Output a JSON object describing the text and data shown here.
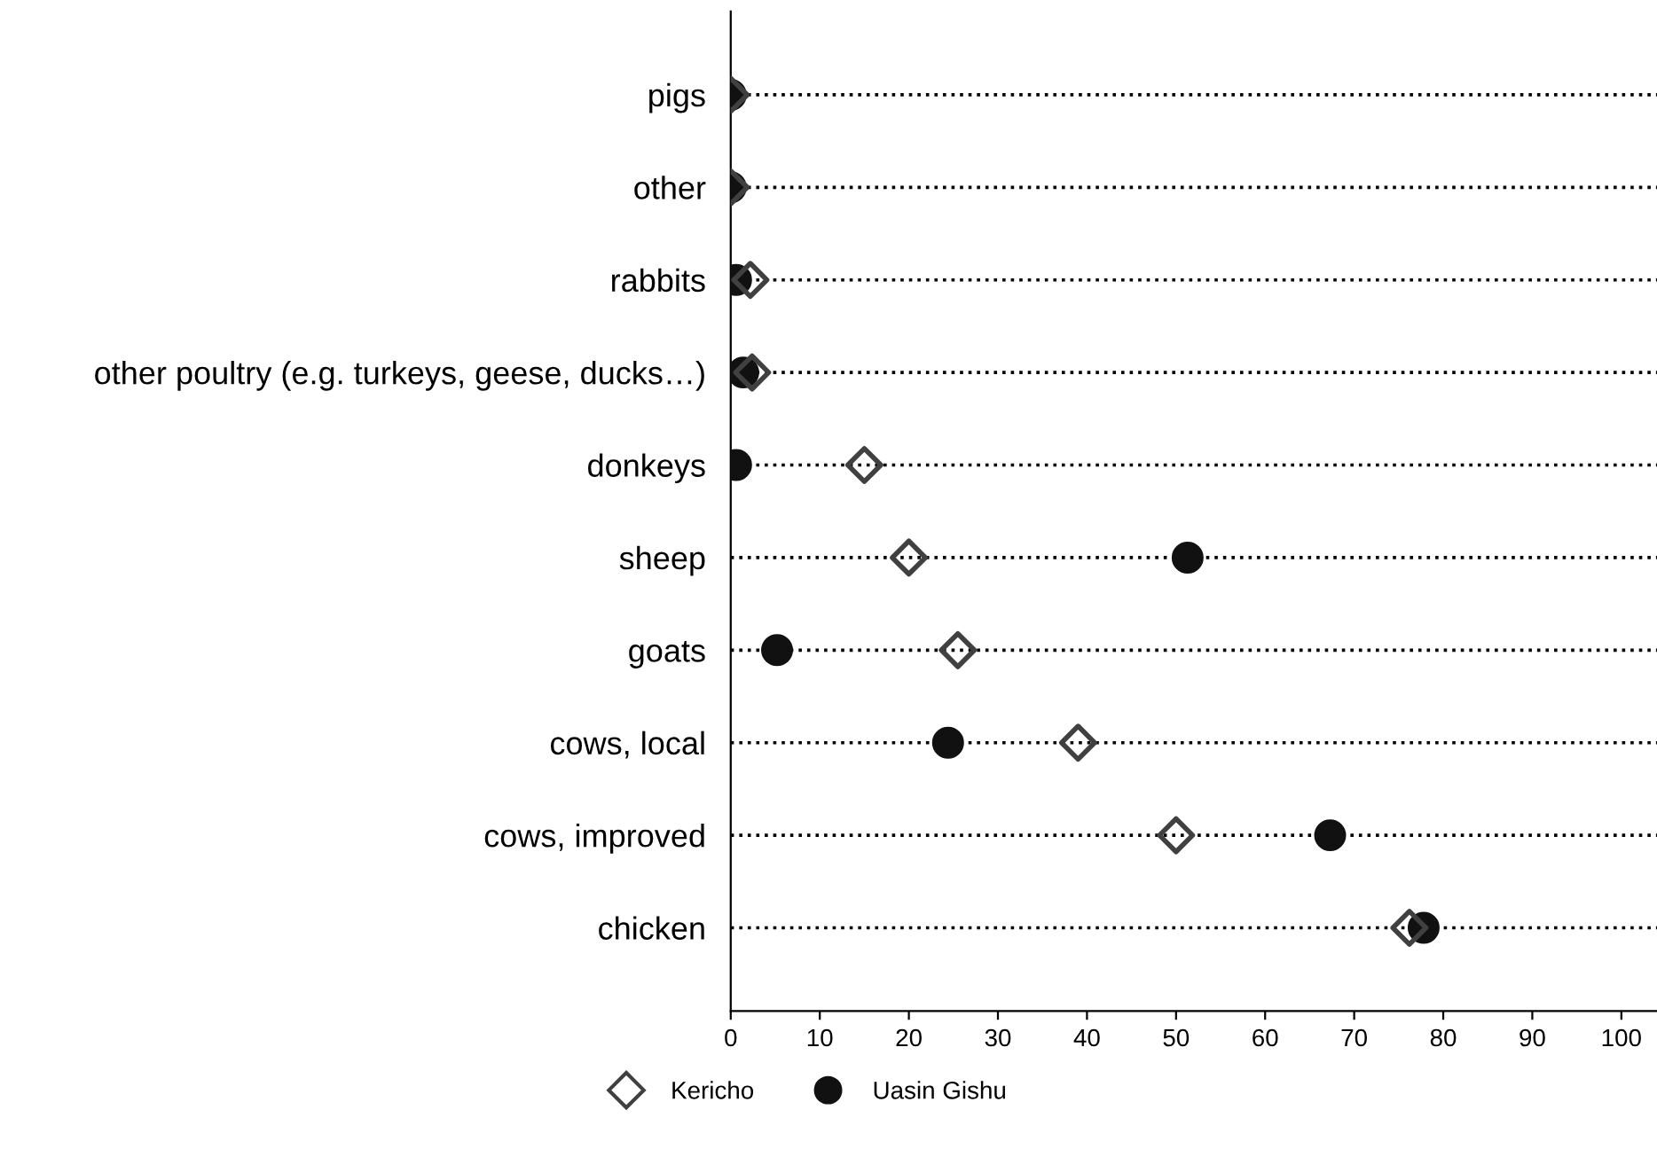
{
  "chart_data": {
    "type": "scatter",
    "orientation": "horizontal",
    "categories": [
      "pigs",
      "other",
      "rabbits",
      "other poultry (e.g. turkeys, geese, ducks…)",
      "donkeys",
      "sheep",
      "goats",
      "cows, local",
      "cows, improved",
      "chicken"
    ],
    "series": [
      {
        "name": "Kericho",
        "color": "#404040",
        "marker": "diamond",
        "values": [
          0,
          0,
          2.2,
          2.4,
          15,
          20,
          25.5,
          39,
          50,
          76.2
        ]
      },
      {
        "name": "Uasin Gishu",
        "color": "#111111",
        "marker": "circle",
        "values": [
          0,
          0,
          0.6,
          1.4,
          0.6,
          51.3,
          5.2,
          24.4,
          67.3,
          77.8
        ]
      }
    ],
    "xlim": [
      0,
      104
    ],
    "xticks": [
      0,
      10,
      20,
      30,
      40,
      50,
      60,
      70,
      80,
      90,
      100
    ],
    "grid": "y",
    "line_style": "dotted",
    "legend": "bottom"
  }
}
